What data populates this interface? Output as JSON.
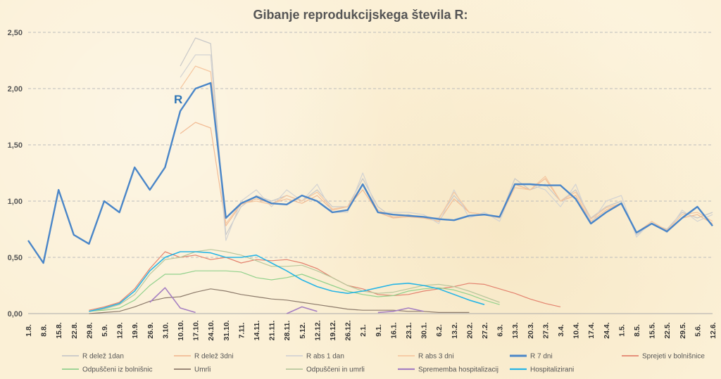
{
  "chart_data": {
    "type": "line",
    "title": "Gibanje reprodukcijskega števila R:",
    "annotation": "R",
    "ylim": [
      0,
      2.5
    ],
    "y_ticks": [
      "0,00",
      "0,50",
      "1,00",
      "1,50",
      "2,00",
      "2,50"
    ],
    "grid": "horizontal dashed",
    "legend_position": "bottom",
    "x_tick_labels": [
      "1.8.",
      "8.8.",
      "15.8.",
      "22.8.",
      "29.8.",
      "5.9.",
      "12.9.",
      "19.9.",
      "26.9.",
      "3.10.",
      "10.10.",
      "17.10.",
      "24.10.",
      "31.10.",
      "7.11.",
      "14.11.",
      "21.11.",
      "28.11.",
      "5.12.",
      "12.12.",
      "19.12.",
      "26.12.",
      "2.1.",
      "9.1.",
      "16.1.",
      "23.1.",
      "30.1.",
      "6.2.",
      "13.2.",
      "20.2.",
      "27.2.",
      "6.3.",
      "13.3.",
      "20.3.",
      "27.3.",
      "3.4.",
      "10.4.",
      "17.4.",
      "24.4.",
      "1.5.",
      "8.5.",
      "15.5.",
      "22.5.",
      "29.5.",
      "5.6.",
      "12.6."
    ],
    "series": [
      {
        "name": "R delež 1dan",
        "color": "#c8c8c8",
        "width": 1.2,
        "values": [
          null,
          null,
          null,
          null,
          null,
          null,
          null,
          null,
          null,
          null,
          2.2,
          2.45,
          2.4,
          0.7,
          0.95,
          1.05,
          1.0,
          1.05,
          1.0,
          1.1,
          0.95,
          0.95,
          1.2,
          0.95,
          0.85,
          0.88,
          0.85,
          0.85,
          1.05,
          0.9,
          0.88,
          0.85,
          1.2,
          1.1,
          1.15,
          1.0,
          1.1,
          0.85,
          0.95,
          1.0,
          0.7,
          0.8,
          0.75,
          0.9,
          0.85,
          0.9
        ]
      },
      {
        "name": "R delež 3dni",
        "color": "#f2bc95",
        "width": 1.2,
        "values": [
          null,
          null,
          null,
          null,
          null,
          null,
          null,
          null,
          null,
          null,
          1.6,
          1.7,
          1.65,
          0.78,
          0.97,
          1.02,
          0.98,
          1.02,
          0.98,
          1.05,
          0.92,
          0.95,
          1.1,
          0.9,
          0.85,
          0.86,
          0.85,
          0.82,
          1.02,
          0.9,
          0.88,
          0.86,
          1.15,
          1.1,
          1.2,
          1.0,
          1.05,
          0.82,
          0.92,
          0.98,
          0.72,
          0.8,
          0.74,
          0.85,
          0.88,
          0.8
        ]
      },
      {
        "name": "R abs 1 dan",
        "color": "#d3d3d3",
        "width": 1.2,
        "values": [
          null,
          null,
          null,
          null,
          null,
          null,
          null,
          null,
          null,
          null,
          2.1,
          2.3,
          2.3,
          0.65,
          1.0,
          1.1,
          0.95,
          1.1,
          1.0,
          1.15,
          0.9,
          0.9,
          1.25,
          0.9,
          0.9,
          0.9,
          0.88,
          0.8,
          1.1,
          0.85,
          0.9,
          0.82,
          1.15,
          1.15,
          1.1,
          0.95,
          1.15,
          0.8,
          1.0,
          1.05,
          0.68,
          0.82,
          0.72,
          0.92,
          0.82,
          0.88
        ]
      },
      {
        "name": "R abs 3 dni",
        "color": "#f5c7a0",
        "width": 1.2,
        "values": [
          null,
          null,
          null,
          null,
          null,
          null,
          null,
          null,
          null,
          null,
          2.0,
          2.2,
          2.15,
          0.8,
          0.98,
          1.0,
          0.97,
          1.05,
          1.0,
          1.08,
          0.93,
          0.95,
          1.15,
          0.92,
          0.86,
          0.87,
          0.86,
          0.84,
          1.08,
          0.9,
          0.88,
          0.85,
          1.12,
          1.1,
          1.22,
          1.0,
          1.08,
          0.84,
          0.94,
          0.98,
          0.72,
          0.82,
          0.74,
          0.88,
          0.9,
          0.82
        ]
      },
      {
        "name": "R 7 dni",
        "color": "#4a86c8",
        "width": 2.4,
        "values": [
          0.65,
          0.45,
          1.1,
          0.7,
          0.62,
          1.0,
          0.9,
          1.3,
          1.1,
          1.3,
          1.8,
          2.0,
          2.05,
          0.85,
          0.98,
          1.04,
          0.98,
          0.97,
          1.05,
          1.0,
          0.9,
          0.92,
          1.15,
          0.9,
          0.88,
          0.87,
          0.86,
          0.84,
          0.83,
          0.87,
          0.88,
          0.86,
          1.15,
          1.15,
          1.14,
          1.14,
          1.02,
          0.8,
          0.9,
          0.98,
          0.72,
          0.8,
          0.73,
          0.85,
          0.95,
          0.78
        ]
      },
      {
        "name": "Sprejeti v bolnišnice",
        "color": "#e3826e",
        "width": 1.2,
        "values": [
          null,
          null,
          null,
          null,
          0.03,
          0.06,
          0.1,
          0.22,
          0.4,
          0.55,
          0.5,
          0.52,
          0.48,
          0.5,
          0.45,
          0.48,
          0.47,
          0.48,
          0.45,
          0.4,
          0.32,
          0.25,
          0.22,
          0.17,
          0.16,
          0.17,
          0.2,
          0.22,
          0.24,
          0.27,
          0.26,
          0.22,
          0.18,
          0.13,
          0.09,
          0.06
        ]
      },
      {
        "name": "Odpuščeni iz bolnišnic",
        "color": "#92d18c",
        "width": 1.2,
        "values": [
          null,
          null,
          null,
          null,
          0.02,
          0.03,
          0.05,
          0.12,
          0.25,
          0.35,
          0.35,
          0.38,
          0.38,
          0.38,
          0.37,
          0.32,
          0.3,
          0.32,
          0.35,
          0.3,
          0.25,
          0.2,
          0.17,
          0.15,
          0.16,
          0.2,
          0.22,
          0.23,
          0.21,
          0.17,
          0.12,
          0.08
        ]
      },
      {
        "name": "Umrli",
        "color": "#8c7a6a",
        "width": 1.2,
        "values": [
          null,
          null,
          null,
          null,
          0.0,
          0.01,
          0.02,
          0.06,
          0.11,
          0.14,
          0.15,
          0.19,
          0.22,
          0.2,
          0.17,
          0.15,
          0.13,
          0.12,
          0.1,
          0.08,
          0.06,
          0.04,
          0.03,
          0.03,
          0.03,
          0.02,
          0.02,
          0.01,
          0.01,
          0.01
        ]
      },
      {
        "name": "Odpuščeni in umrli",
        "color": "#b8c79c",
        "width": 1.2,
        "values": [
          null,
          null,
          null,
          null,
          0.02,
          0.04,
          0.08,
          0.17,
          0.35,
          0.48,
          0.5,
          0.55,
          0.57,
          0.55,
          0.52,
          0.47,
          0.42,
          0.42,
          0.43,
          0.38,
          0.32,
          0.25,
          0.2,
          0.18,
          0.19,
          0.22,
          0.25,
          0.26,
          0.24,
          0.2,
          0.15,
          0.1
        ]
      },
      {
        "name": "Sprememba hospitalizacij",
        "color": "#a57fc2",
        "width": 1.6,
        "values": [
          null,
          null,
          null,
          null,
          null,
          null,
          null,
          null,
          0.1,
          0.23,
          0.05,
          0.01,
          null,
          null,
          null,
          null,
          null,
          0.0,
          0.06,
          0.02,
          null,
          null,
          null,
          0.01,
          0.02,
          0.05,
          0.02,
          null
        ]
      },
      {
        "name": "Hospitalizirani",
        "color": "#27b5e6",
        "width": 1.6,
        "values": [
          null,
          null,
          null,
          null,
          0.02,
          0.05,
          0.09,
          0.2,
          0.38,
          0.5,
          0.55,
          0.55,
          0.54,
          0.5,
          0.5,
          0.52,
          0.45,
          0.38,
          0.3,
          0.24,
          0.2,
          0.18,
          0.2,
          0.23,
          0.26,
          0.27,
          0.25,
          0.22,
          0.17,
          0.12,
          0.08
        ]
      }
    ]
  }
}
